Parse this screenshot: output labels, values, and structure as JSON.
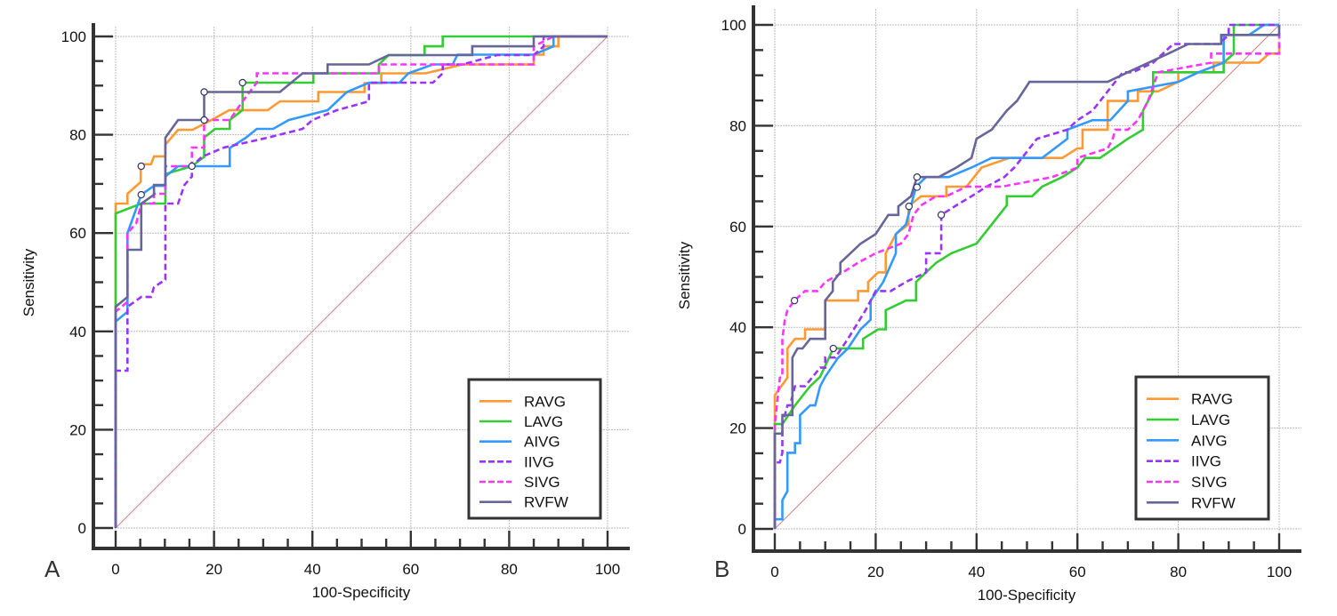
{
  "colors": {
    "RAVG": "#FF9933",
    "LAVG": "#33CC33",
    "AIVG": "#3399FF",
    "IIVG": "#9933FF",
    "SIVG": "#FF33FF",
    "RVFW": "#666699",
    "reference": "#CC8888",
    "grid": "#BBBBBB",
    "axis": "#333333"
  },
  "chart_data": [
    {
      "type": "line",
      "panel": "A",
      "title": "",
      "xlabel": "100-Specificity",
      "ylabel": "Sensitivity",
      "xlim": [
        0,
        100
      ],
      "ylim": [
        0,
        100
      ],
      "xticks": [
        "0",
        "20",
        "40",
        "60",
        "80",
        "100"
      ],
      "yticks": [
        "0",
        "20",
        "40",
        "60",
        "80",
        "100"
      ],
      "grid": true,
      "legend": {
        "position": "bottom-right",
        "entries": [
          "RAVG",
          "LAVG",
          "AIVG",
          "IIVG",
          "SIVG",
          "RVFW"
        ]
      },
      "reference_line": {
        "x": [
          0,
          100
        ],
        "y": [
          0,
          100
        ]
      },
      "series": [
        {
          "name": "RAVG",
          "dashed": false,
          "x": [
            0,
            0,
            2.4,
            2.4,
            4.2,
            5.1,
            5.1,
            7.2,
            7.8,
            10.1,
            10.1,
            12.7,
            15.6,
            19.5,
            23.1,
            30.9,
            33.4,
            41.2,
            41.2,
            50.6,
            50.6,
            54,
            54,
            63,
            70.5,
            85,
            85,
            87,
            87,
            90,
            90,
            100
          ],
          "y": [
            0,
            66,
            66,
            68,
            69.6,
            70.4,
            74,
            74,
            75.6,
            75.6,
            78,
            81,
            81,
            83,
            85,
            85,
            86.8,
            86.8,
            88.7,
            88.7,
            90.5,
            90.5,
            92.5,
            92.5,
            94.3,
            94.3,
            96.3,
            96.3,
            98,
            98,
            100,
            100
          ]
        },
        {
          "name": "LAVG",
          "dashed": false,
          "x": [
            0,
            0,
            0,
            5.2,
            10.1,
            10.1,
            15.5,
            18,
            18,
            20.2,
            23.2,
            23.2,
            25.8,
            25.8,
            40.2,
            40.2,
            53.5,
            53.5,
            55.5,
            62.8,
            62.8,
            66.5,
            66.5,
            89,
            89,
            100
          ],
          "y": [
            0,
            45,
            64,
            66,
            66,
            72,
            73.6,
            75.5,
            79.4,
            81.2,
            81.2,
            83,
            85,
            90.6,
            90.6,
            92.5,
            92.5,
            94.3,
            96.2,
            96.2,
            98,
            98,
            100,
            100,
            100,
            100
          ]
        },
        {
          "name": "AIVG",
          "dashed": false,
          "x": [
            0,
            0,
            2.4,
            2.4,
            5.2,
            7.8,
            10.1,
            10.1,
            12.7,
            15.5,
            23.2,
            23.2,
            26.5,
            28.7,
            32,
            35.2,
            43.1,
            45,
            47,
            51.5,
            57.7,
            59.5,
            64.5,
            68.5,
            69.5,
            72,
            85,
            89,
            89,
            100
          ],
          "y": [
            0,
            42,
            44,
            60,
            67.8,
            69.6,
            69.6,
            71.5,
            73.6,
            73.6,
            73.6,
            77.3,
            79.4,
            81.2,
            81.2,
            83,
            85,
            86.8,
            88.7,
            90.6,
            90.6,
            92.5,
            94.3,
            94.3,
            96.3,
            96.3,
            96.3,
            98,
            100,
            100
          ]
        },
        {
          "name": "IIVG",
          "dashed": false,
          "x": [
            0,
            0,
            2.4,
            2.4,
            5.2,
            7.2,
            7.8,
            10.1,
            10.1,
            12.7,
            14,
            15.5,
            15.5,
            17.5,
            22,
            30.9,
            38,
            40,
            45,
            51.5,
            51.5,
            54.5,
            64.5,
            66.5,
            66.5,
            68.5,
            70.5,
            77.5,
            85,
            87,
            87,
            90,
            100
          ],
          "y": [
            0,
            32,
            32,
            45,
            47,
            47,
            49,
            50.5,
            66,
            66,
            69.8,
            71.5,
            73.6,
            75.5,
            77.4,
            79.4,
            81.2,
            83,
            85,
            86.8,
            90.6,
            90.6,
            90.6,
            92.5,
            94.3,
            94.3,
            94.3,
            96.2,
            96.2,
            98,
            100,
            100,
            100
          ]
        },
        {
          "name": "SIVG",
          "dashed": false,
          "x": [
            0,
            0,
            2.4,
            2.4,
            4.2,
            5.2,
            7.8,
            7.8,
            10.1,
            10.1,
            15.5,
            15.5,
            18,
            18,
            23.2,
            25.8,
            28.7,
            28.7,
            43.1,
            53.5,
            53.5,
            59.5,
            59.5,
            85,
            85,
            89,
            100
          ],
          "y": [
            0,
            44,
            46,
            60,
            62,
            66,
            66,
            68,
            68,
            73.6,
            73.6,
            77.4,
            77.4,
            83,
            83,
            86.8,
            90.6,
            92.5,
            92.5,
            92.5,
            94.3,
            94.3,
            94.3,
            94.3,
            98,
            100,
            100
          ]
        },
        {
          "name": "RVFW",
          "dashed": false,
          "x": [
            0,
            0,
            2.4,
            2.4,
            5.2,
            5.2,
            7.8,
            7.8,
            10.1,
            10.1,
            12.7,
            18,
            18,
            33.4,
            38,
            43.1,
            43.1,
            51.5,
            55.5,
            72.5,
            72.5,
            85,
            85,
            89,
            100
          ],
          "y": [
            0,
            45,
            47,
            56.6,
            56.6,
            66,
            67.8,
            69.8,
            69.8,
            79.4,
            83,
            83,
            88.7,
            88.7,
            92.5,
            92.5,
            94.3,
            94.3,
            96.2,
            96.2,
            98,
            98,
            100,
            100,
            100
          ]
        }
      ],
      "markers": [
        {
          "series": "RAVG",
          "x": 5.2,
          "y": 73.6
        },
        {
          "series": "AIVG",
          "x": 5.2,
          "y": 67.8
        },
        {
          "series": "IIVG",
          "x": 15.5,
          "y": 73.6
        },
        {
          "series": "RVFW",
          "x": 18,
          "y": 88.7
        },
        {
          "series": "SIVG",
          "x": 18,
          "y": 83
        },
        {
          "series": "LAVG",
          "x": 25.8,
          "y": 90.6
        }
      ]
    },
    {
      "type": "line",
      "panel": "B",
      "title": "",
      "xlabel": "100-Specificity",
      "ylabel": "Sensitivity",
      "xlim": [
        0,
        100
      ],
      "ylim": [
        0,
        100
      ],
      "xticks": [
        "0",
        "20",
        "40",
        "60",
        "80",
        "100"
      ],
      "yticks": [
        "0",
        "20",
        "40",
        "60",
        "80",
        "100"
      ],
      "grid": true,
      "legend": {
        "position": "bottom-right",
        "entries": [
          "RAVG",
          "LAVG",
          "AIVG",
          "IIVG",
          "SIVG",
          "RVFW"
        ]
      },
      "reference_line": {
        "x": [
          0,
          100
        ],
        "y": [
          0,
          100
        ]
      },
      "series": [
        {
          "name": "RAVG",
          "dashed": false,
          "x": [
            0,
            0,
            2.5,
            2.5,
            4,
            6,
            6,
            10,
            10,
            16.5,
            16.5,
            18.5,
            18.5,
            20.5,
            22,
            22,
            24,
            26.5,
            26.5,
            29,
            34,
            34,
            38,
            41,
            46.5,
            57,
            60,
            61,
            61,
            66,
            66,
            72,
            72,
            74.5,
            76,
            80,
            80,
            85,
            87,
            87,
            90,
            96,
            98,
            100,
            100
          ],
          "y": [
            0,
            26.5,
            30,
            35.8,
            37.7,
            37.7,
            39.6,
            39.6,
            45.3,
            45.3,
            47.2,
            47.2,
            49,
            50.9,
            50.9,
            54.7,
            58.5,
            60.4,
            64,
            66,
            66,
            67.9,
            67.9,
            71.7,
            73.6,
            73.6,
            75.5,
            75.5,
            79.2,
            79.2,
            84.9,
            84.9,
            86.8,
            86.8,
            86.8,
            88.7,
            90.6,
            90.6,
            90.6,
            92.5,
            92.5,
            92.5,
            94.3,
            94.3,
            96.2
          ]
        },
        {
          "name": "LAVG",
          "dashed": false,
          "x": [
            0,
            0,
            1.5,
            4,
            7,
            9,
            11.6,
            17.5,
            17.5,
            20.5,
            22,
            22,
            26,
            28,
            28,
            32,
            35,
            40,
            46,
            46,
            51,
            53,
            57,
            60,
            61.5,
            64.5,
            70,
            73,
            73,
            75,
            75,
            89,
            89,
            91,
            91,
            100
          ],
          "y": [
            0,
            20.8,
            20.8,
            24.5,
            28.3,
            30.2,
            35.8,
            35.8,
            37.7,
            39.6,
            39.6,
            43.4,
            45.3,
            45.3,
            49,
            52.8,
            54.7,
            56.6,
            64.2,
            66,
            66,
            67.9,
            69.8,
            71.7,
            73.6,
            73.6,
            77.4,
            79.2,
            83,
            86.8,
            90.6,
            90.6,
            92.5,
            94.3,
            100,
            100
          ]
        },
        {
          "name": "AIVG",
          "dashed": false,
          "x": [
            0,
            0,
            1.5,
            1.5,
            2.5,
            2.5,
            4,
            4,
            5,
            5,
            7,
            8,
            9,
            10,
            12.5,
            14.5,
            17,
            19,
            19,
            21.5,
            24,
            24,
            26,
            28,
            30,
            34.5,
            39,
            43,
            53,
            58,
            58,
            63,
            66.5,
            70,
            70,
            80,
            84,
            89,
            89,
            94,
            97,
            100,
            100
          ],
          "y": [
            0,
            1.9,
            1.9,
            5.7,
            7.5,
            15.1,
            15.1,
            17,
            17,
            22.6,
            24.5,
            24.5,
            28.3,
            30.2,
            33.9,
            35.8,
            39.6,
            41.5,
            45.3,
            49,
            54.7,
            58.5,
            60.4,
            67.9,
            69.8,
            69.8,
            71.7,
            73.6,
            73.6,
            77.4,
            79.2,
            81.1,
            81.1,
            84.9,
            86.8,
            88.7,
            90.6,
            92.5,
            98,
            98,
            100,
            100,
            100
          ]
        },
        {
          "name": "IIVG",
          "dashed": true,
          "x": [
            0,
            0,
            1,
            1.5,
            1.5,
            2.5,
            3,
            4,
            4,
            6,
            9,
            10,
            10,
            12,
            14.5,
            18,
            20,
            23,
            26,
            30,
            30,
            33,
            33,
            36,
            39,
            42,
            45.5,
            47.5,
            52,
            58,
            60,
            63,
            66,
            69,
            71,
            75,
            79,
            88,
            90,
            90,
            100
          ],
          "y": [
            0,
            13.2,
            13.2,
            15.1,
            20.8,
            24.5,
            24.5,
            28.3,
            28.3,
            28.3,
            32,
            32,
            34,
            34,
            37.7,
            43.4,
            47.2,
            47.2,
            49,
            50.9,
            54.7,
            54.7,
            62.3,
            64.2,
            66,
            67.9,
            69.8,
            71.7,
            77.4,
            79.2,
            81.1,
            83,
            86.8,
            90.6,
            90.6,
            92.5,
            96.2,
            96.2,
            98,
            100,
            100
          ]
        },
        {
          "name": "SIVG",
          "dashed": true,
          "x": [
            0,
            0,
            1,
            1.5,
            1.5,
            2,
            2.5,
            3.9,
            6,
            8.5,
            10,
            13.5,
            16.5,
            20,
            25,
            26.5,
            27.5,
            29,
            32,
            34,
            38,
            45,
            55,
            60,
            60,
            66,
            67,
            67.5,
            70,
            72,
            74,
            76,
            86.5,
            86.5,
            100,
            100
          ],
          "y": [
            0,
            20.8,
            30,
            30.2,
            37.7,
            41.5,
            43.4,
            45.3,
            47.2,
            47.2,
            49,
            50.9,
            52.8,
            54.7,
            56.6,
            58.5,
            62.3,
            64.2,
            66,
            66,
            67.9,
            67.9,
            69.8,
            71.7,
            73.6,
            75.5,
            77.4,
            79.2,
            79.2,
            81.1,
            84.9,
            90.6,
            92.5,
            94.3,
            94.3,
            100
          ]
        },
        {
          "name": "RVFW",
          "dashed": false,
          "x": [
            0,
            0,
            1.5,
            1.5,
            3.5,
            3.5,
            4.5,
            5.5,
            7,
            10,
            10,
            11.5,
            11.5,
            13,
            13,
            15,
            17,
            20,
            22.5,
            24.5,
            24.5,
            27,
            28.2,
            29,
            32.5,
            36,
            39,
            40,
            43,
            46,
            48,
            48,
            50.5,
            51.5,
            60,
            66,
            70,
            78,
            82,
            88.5,
            88.5,
            100,
            100
          ],
          "y": [
            0,
            18.9,
            18.9,
            22.6,
            22.6,
            34,
            35.8,
            35.8,
            37.7,
            37.7,
            45.3,
            47.2,
            49,
            50.9,
            52.8,
            54.7,
            56.6,
            58.5,
            62.3,
            62.3,
            64,
            66,
            69.8,
            69.8,
            69.8,
            71.7,
            73.6,
            77.4,
            79.2,
            83,
            84.9,
            84.9,
            88.7,
            88.7,
            88.7,
            88.7,
            90.6,
            94.3,
            96.2,
            96.2,
            98,
            98,
            100
          ]
        }
      ],
      "markers": [
        {
          "series": "SIVG",
          "x": 3.9,
          "y": 45.3
        },
        {
          "series": "LAVG",
          "x": 11.6,
          "y": 35.8
        },
        {
          "series": "RAVG",
          "x": 26.6,
          "y": 64
        },
        {
          "series": "RVFW",
          "x": 28.2,
          "y": 69.8
        },
        {
          "series": "AIVG",
          "x": 28.2,
          "y": 67.8
        },
        {
          "series": "IIVG",
          "x": 33,
          "y": 62.3
        }
      ]
    }
  ],
  "panels": {
    "A": {
      "label": "A",
      "xlabel": "100-Specificity",
      "ylabel": "Sensitivity"
    },
    "B": {
      "label": "B",
      "xlabel": "100-Specificity",
      "ylabel": "Sensitivity"
    }
  },
  "legend_labels": [
    "RAVG",
    "LAVG",
    "AIVG",
    "IIVG",
    "SIVG",
    "RVFW"
  ]
}
